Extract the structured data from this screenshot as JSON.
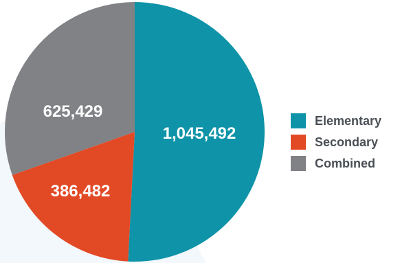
{
  "chart_data": {
    "type": "pie",
    "title": "",
    "slices": [
      {
        "label": "Elementary",
        "value": 1045492,
        "display": "1,045,492",
        "color": "#0e93a8"
      },
      {
        "label": "Secondary",
        "value": 386482,
        "display": "386,482",
        "color": "#e24a26"
      },
      {
        "label": "Combined",
        "value": 625429,
        "display": "625,429",
        "color": "#808285"
      }
    ],
    "legend_position": "right"
  },
  "legend": {
    "items": [
      {
        "label": "Elementary",
        "color": "#0e93a8"
      },
      {
        "label": "Secondary",
        "color": "#e24a26"
      },
      {
        "label": "Combined",
        "color": "#808285"
      }
    ]
  }
}
